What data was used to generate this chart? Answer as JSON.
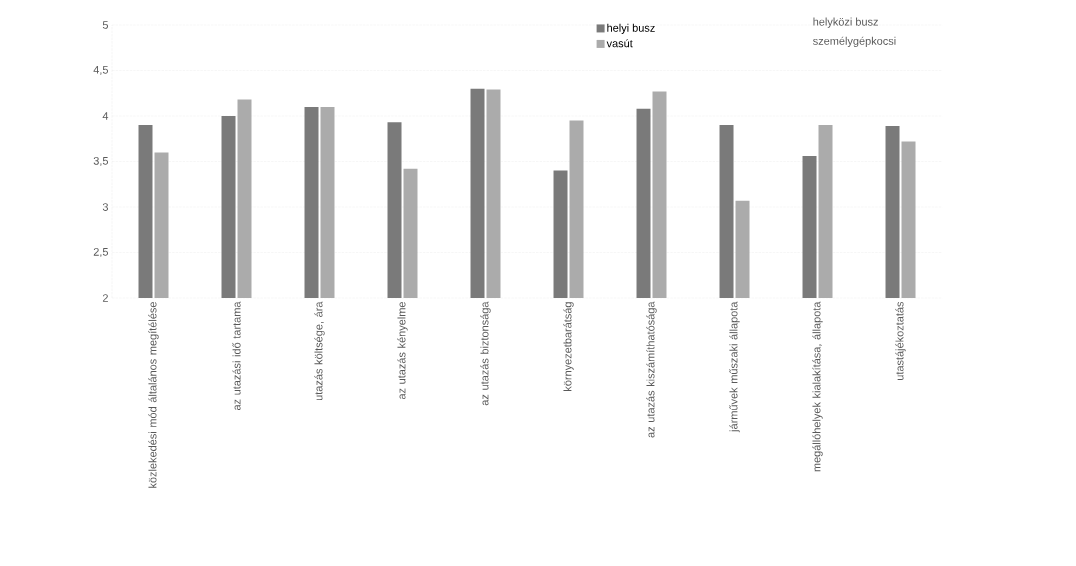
{
  "chart_data": {
    "type": "bar",
    "categories": [
      "közlekedési mód általános megítélése",
      "az utazási idő tartama",
      "utazás költsége, ára",
      "az utazás kényelme",
      "az utazás biztonsága",
      "környezetbarátság",
      "az utazás kiszámíthatósága",
      "járművek műszaki állapota",
      "megállóhelyek kialakítása, állapota",
      "utastájékoztatás"
    ],
    "series": [
      {
        "name": "helyi busz",
        "color": "#7a7a7a",
        "values": [
          3.9,
          4.0,
          4.1,
          3.93,
          4.3,
          3.4,
          4.08,
          3.9,
          3.56,
          3.89
        ]
      },
      {
        "name": "vasút",
        "color": "#ababab",
        "values": [
          3.6,
          4.18,
          4.1,
          3.42,
          4.29,
          3.95,
          4.27,
          3.07,
          3.9,
          3.72
        ]
      }
    ],
    "ylim": [
      2,
      5
    ],
    "yticks": [
      2,
      {
        "value": 2.5,
        "label": "2,5"
      },
      3,
      {
        "value": 3.5,
        "label": "3,5"
      },
      4,
      {
        "value": 4.5,
        "label": "4,5"
      },
      5
    ],
    "grid": "y",
    "legend": "top right",
    "annotations": [
      "helyközi busz",
      "személygépkocsi"
    ]
  }
}
